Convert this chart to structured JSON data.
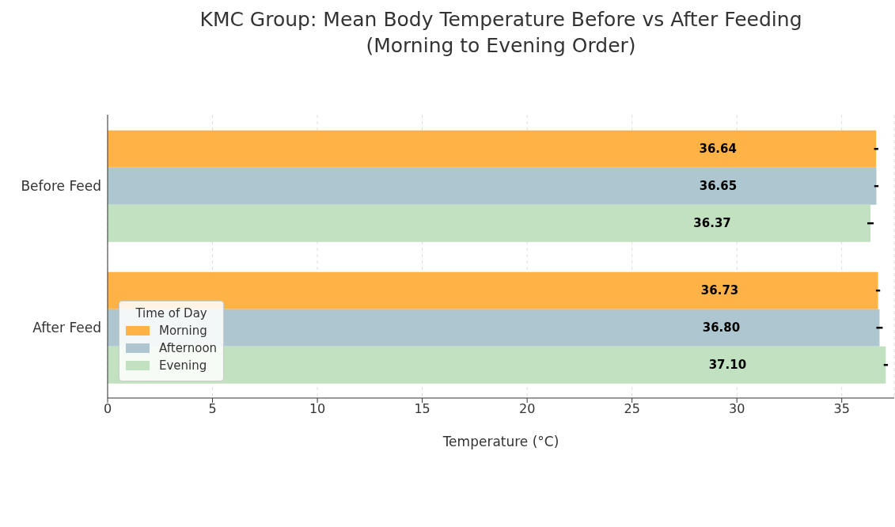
{
  "chart_data": {
    "type": "bar",
    "orientation": "horizontal",
    "title": "KMC Group: Mean Body Temperature Before vs After Feeding\n(Morning to Evening Order)",
    "xlabel": "Temperature (°C)",
    "legend_title": "Time of Day",
    "categories": [
      "Before Feed",
      "After Feed"
    ],
    "series": [
      {
        "name": "Morning",
        "color": "#ffb347",
        "values": [
          36.64,
          36.73
        ],
        "errors": [
          0.1,
          0.1
        ],
        "value_labels": [
          "36.64",
          "36.73"
        ]
      },
      {
        "name": "Afternoon",
        "color": "#aec6cf",
        "values": [
          36.65,
          36.8
        ],
        "errors": [
          0.1,
          0.15
        ],
        "value_labels": [
          "36.65",
          "36.80"
        ]
      },
      {
        "name": "Evening",
        "color": "#c1e1c1",
        "values": [
          36.37,
          37.1
        ],
        "errors": [
          0.15,
          0.1
        ],
        "value_labels": [
          "36.37",
          "37.10"
        ]
      }
    ],
    "xlim": [
      0,
      37.5
    ],
    "xticks": [
      0,
      5,
      10,
      15,
      20,
      25,
      30,
      35
    ],
    "grid": "x",
    "legend": "center left"
  }
}
